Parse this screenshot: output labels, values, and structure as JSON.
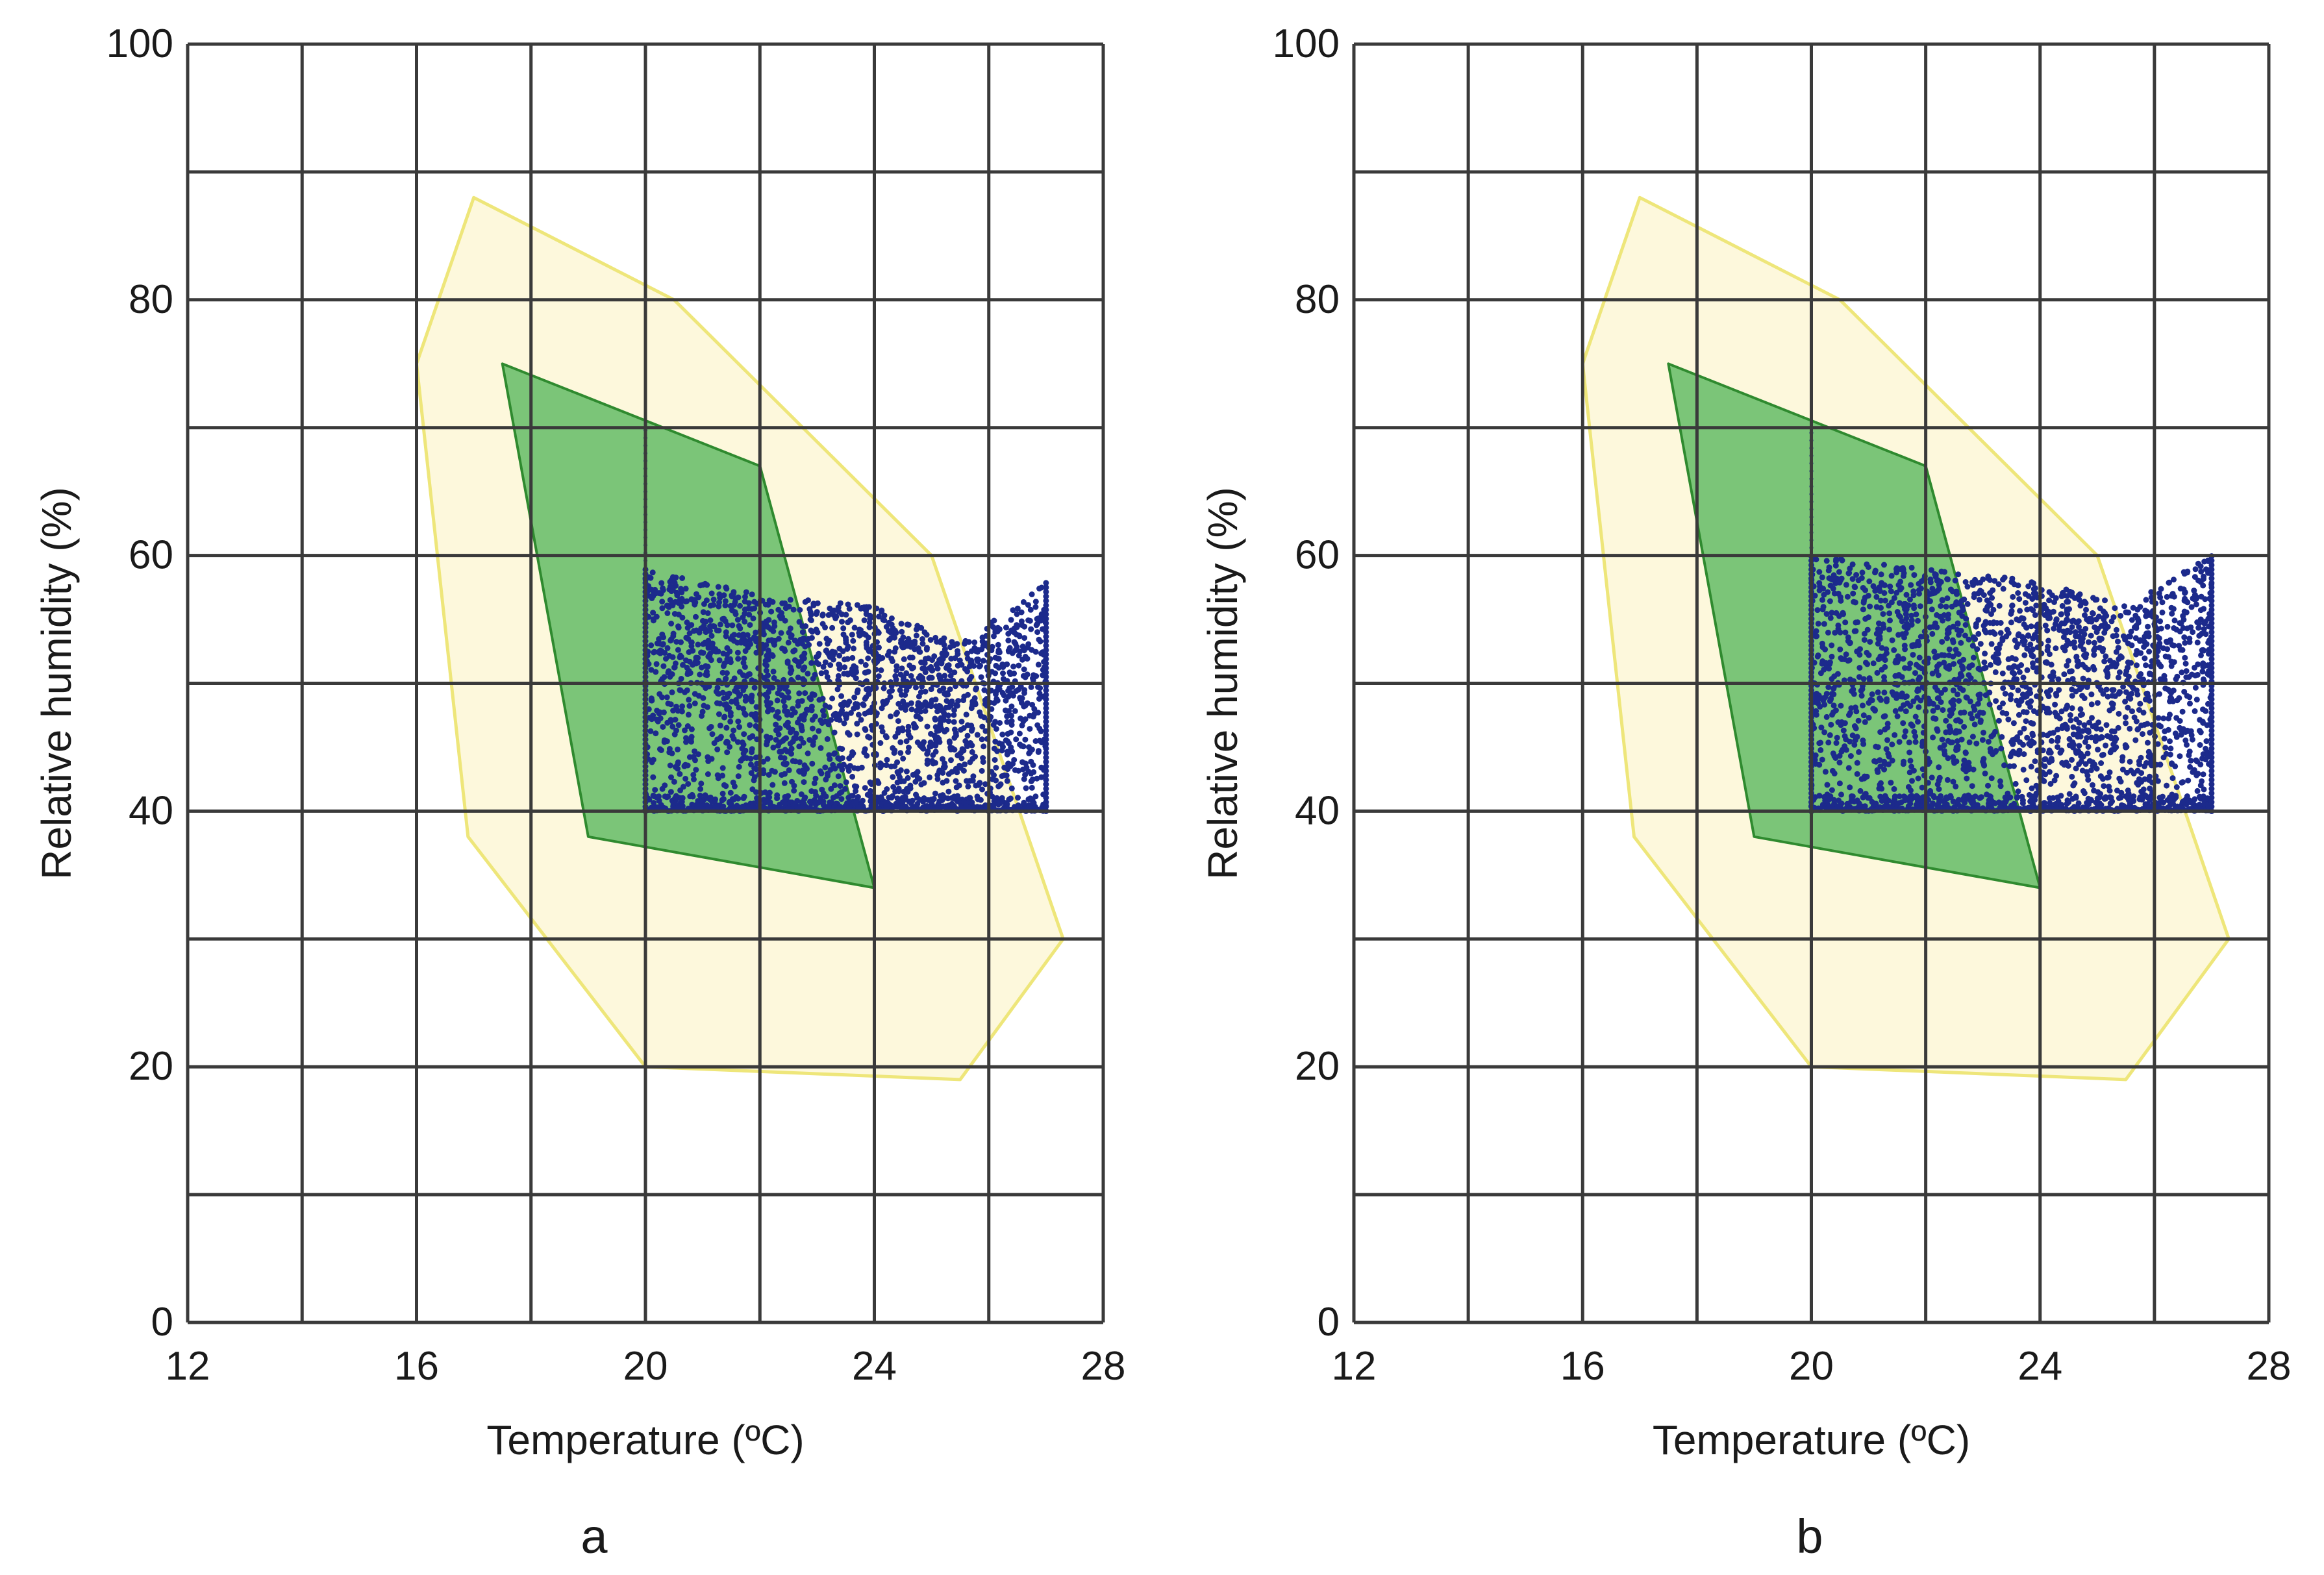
{
  "chart_data": [
    {
      "type": "scatter",
      "panel_label": "a",
      "xlabel": "Temperature (ºC)",
      "ylabel": "Relative humidity (%)",
      "xlim": [
        12,
        28
      ],
      "ylim": [
        0,
        100
      ],
      "x_ticks": [
        12,
        16,
        20,
        24,
        28
      ],
      "y_ticks": [
        0,
        20,
        40,
        60,
        80,
        100
      ],
      "x_grid_step": 2,
      "y_grid_step": 10,
      "grid": true,
      "colors": {
        "outer_zone_fill": "#fdf8dc",
        "outer_zone_stroke": "#eee67a",
        "inner_zone_fill": "#6dbf6d",
        "inner_zone_stroke": "#2f8a2f",
        "points": "#1c2a8c",
        "grid": "#3a3a3a"
      },
      "outer_zone": [
        [
          17,
          88
        ],
        [
          20.5,
          80
        ],
        [
          25,
          60
        ],
        [
          27.3,
          30
        ],
        [
          25.5,
          19
        ],
        [
          20,
          20
        ],
        [
          16.9,
          38
        ],
        [
          16,
          75
        ]
      ],
      "inner_zone": [
        [
          17.5,
          75
        ],
        [
          22,
          67
        ],
        [
          24,
          34
        ],
        [
          19,
          38
        ]
      ],
      "point_region": {
        "x_min": 20,
        "x_max": 27,
        "y_min": 40,
        "y_max": 60,
        "upper_edge": [
          [
            20,
            59
          ],
          [
            22,
            57
          ],
          [
            24,
            56
          ],
          [
            25.5,
            53
          ],
          [
            27,
            58
          ]
        ]
      }
    },
    {
      "type": "scatter",
      "panel_label": "b",
      "xlabel": "Temperature (ºC)",
      "ylabel": "Relative humidity (%)",
      "xlim": [
        12,
        28
      ],
      "ylim": [
        0,
        100
      ],
      "x_ticks": [
        12,
        16,
        20,
        24,
        28
      ],
      "y_ticks": [
        0,
        20,
        40,
        60,
        80,
        100
      ],
      "x_grid_step": 2,
      "y_grid_step": 10,
      "grid": true,
      "colors": {
        "outer_zone_fill": "#fdf8dc",
        "outer_zone_stroke": "#eee67a",
        "inner_zone_fill": "#6dbf6d",
        "inner_zone_stroke": "#2f8a2f",
        "points": "#1c2a8c",
        "grid": "#3a3a3a"
      },
      "outer_zone": [
        [
          17,
          88
        ],
        [
          20.5,
          80
        ],
        [
          25,
          60
        ],
        [
          27.3,
          30
        ],
        [
          25.5,
          19
        ],
        [
          20,
          20
        ],
        [
          16.9,
          38
        ],
        [
          16,
          75
        ]
      ],
      "inner_zone": [
        [
          17.5,
          75
        ],
        [
          22,
          67
        ],
        [
          24,
          34
        ],
        [
          19,
          38
        ]
      ],
      "point_region": {
        "x_min": 20,
        "x_max": 27,
        "y_min": 40,
        "y_max": 60,
        "upper_edge": [
          [
            20,
            60
          ],
          [
            22,
            59
          ],
          [
            24,
            58
          ],
          [
            25.5,
            56
          ],
          [
            27,
            60
          ]
        ]
      }
    }
  ]
}
